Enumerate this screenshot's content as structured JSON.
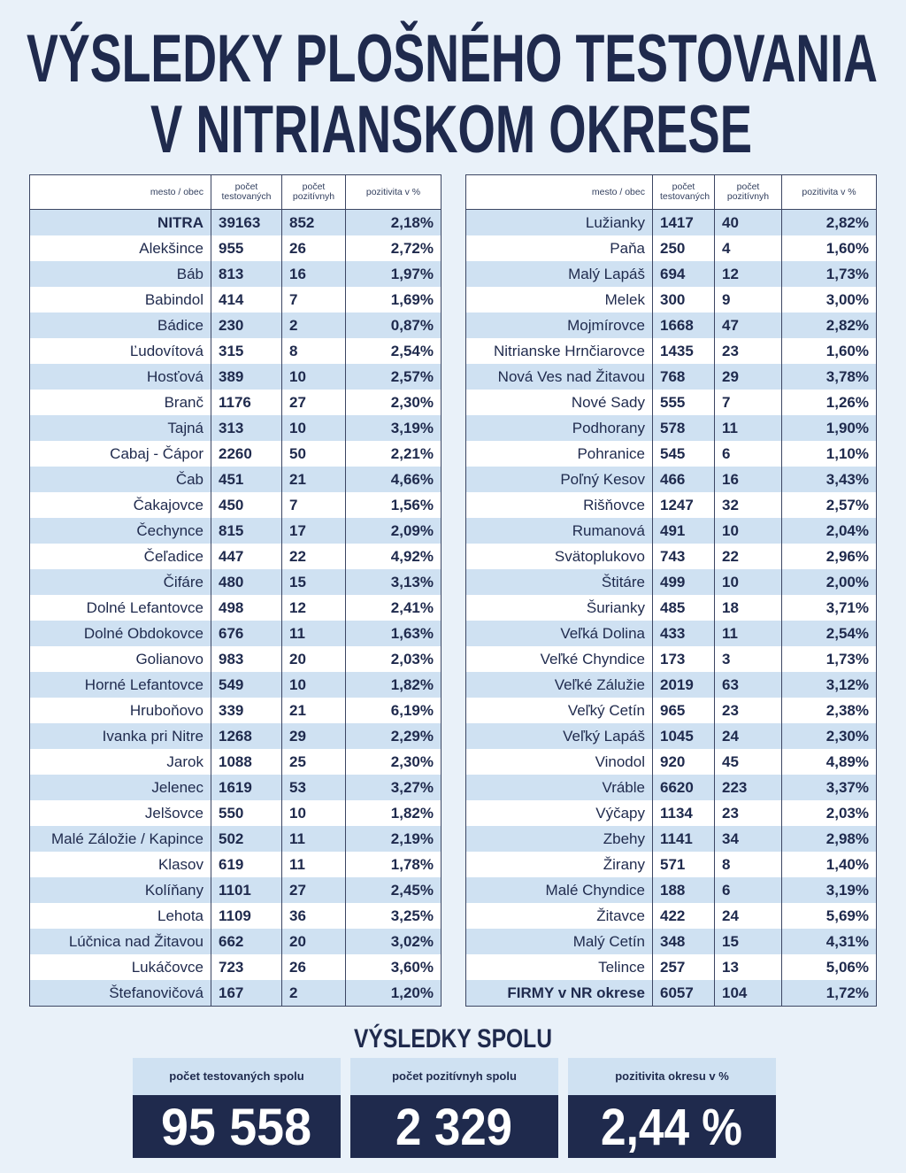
{
  "title": {
    "line1": "VÝSLEDKY PLOŠNÉHO TESTOVANIA",
    "line2": "V NITRIANSKOM OKRESE"
  },
  "tables": [
    {
      "header": [
        "mesto / obec",
        "počet testovaných",
        "počet pozitívnyh",
        "pozitivita v %"
      ],
      "rows": [
        [
          "NITRA",
          "39163",
          "852",
          "2,18%"
        ],
        [
          "Alekšince",
          "955",
          "26",
          "2,72%"
        ],
        [
          "Báb",
          "813",
          "16",
          "1,97%"
        ],
        [
          "Babindol",
          "414",
          "7",
          "1,69%"
        ],
        [
          "Bádice",
          "230",
          "2",
          "0,87%"
        ],
        [
          "Ľudovítová",
          "315",
          "8",
          "2,54%"
        ],
        [
          "Hosťová",
          "389",
          "10",
          "2,57%"
        ],
        [
          "Branč",
          "1176",
          "27",
          "2,30%"
        ],
        [
          "Tajná",
          "313",
          "10",
          "3,19%"
        ],
        [
          "Cabaj - Čápor",
          "2260",
          "50",
          "2,21%"
        ],
        [
          "Čab",
          "451",
          "21",
          "4,66%"
        ],
        [
          "Čakajovce",
          "450",
          "7",
          "1,56%"
        ],
        [
          "Čechynce",
          "815",
          "17",
          "2,09%"
        ],
        [
          "Čeľadice",
          "447",
          "22",
          "4,92%"
        ],
        [
          "Čifáre",
          "480",
          "15",
          "3,13%"
        ],
        [
          "Dolné Lefantovce",
          "498",
          "12",
          "2,41%"
        ],
        [
          "Dolné Obdokovce",
          "676",
          "11",
          "1,63%"
        ],
        [
          "Golianovo",
          "983",
          "20",
          "2,03%"
        ],
        [
          "Horné Lefantovce",
          "549",
          "10",
          "1,82%"
        ],
        [
          "Hruboňovo",
          "339",
          "21",
          "6,19%"
        ],
        [
          "Ivanka pri Nitre",
          "1268",
          "29",
          "2,29%"
        ],
        [
          "Jarok",
          "1088",
          "25",
          "2,30%"
        ],
        [
          "Jelenec",
          "1619",
          "53",
          "3,27%"
        ],
        [
          "Jelšovce",
          "550",
          "10",
          "1,82%"
        ],
        [
          "Malé Záložie / Kapince",
          "502",
          "11",
          "2,19%"
        ],
        [
          "Klasov",
          "619",
          "11",
          "1,78%"
        ],
        [
          "Kolíňany",
          "1101",
          "27",
          "2,45%"
        ],
        [
          "Lehota",
          "1109",
          "36",
          "3,25%"
        ],
        [
          "Lúčnica nad Žitavou",
          "662",
          "20",
          "3,02%"
        ],
        [
          "Lukáčovce",
          "723",
          "26",
          "3,60%"
        ],
        [
          "Štefanovičová",
          "167",
          "2",
          "1,20%"
        ]
      ]
    },
    {
      "header": [
        "mesto / obec",
        "počet testovaných",
        "počet pozitívnyh",
        "pozitivita v %"
      ],
      "rows": [
        [
          "Lužianky",
          "1417",
          "40",
          "2,82%"
        ],
        [
          "Paňa",
          "250",
          "4",
          "1,60%"
        ],
        [
          "Malý Lapáš",
          "694",
          "12",
          "1,73%"
        ],
        [
          "Melek",
          "300",
          "9",
          "3,00%"
        ],
        [
          "Mojmírovce",
          "1668",
          "47",
          "2,82%"
        ],
        [
          "Nitrianske Hrnčiarovce",
          "1435",
          "23",
          "1,60%"
        ],
        [
          "Nová Ves nad Žitavou",
          "768",
          "29",
          "3,78%"
        ],
        [
          "Nové Sady",
          "555",
          "7",
          "1,26%"
        ],
        [
          "Podhorany",
          "578",
          "11",
          "1,90%"
        ],
        [
          "Pohranice",
          "545",
          "6",
          "1,10%"
        ],
        [
          "Poľný Kesov",
          "466",
          "16",
          "3,43%"
        ],
        [
          "Rišňovce",
          "1247",
          "32",
          "2,57%"
        ],
        [
          "Rumanová",
          "491",
          "10",
          "2,04%"
        ],
        [
          "Svätoplukovo",
          "743",
          "22",
          "2,96%"
        ],
        [
          "Štitáre",
          "499",
          "10",
          "2,00%"
        ],
        [
          "Šurianky",
          "485",
          "18",
          "3,71%"
        ],
        [
          "Veľká Dolina",
          "433",
          "11",
          "2,54%"
        ],
        [
          "Veľké Chyndice",
          "173",
          "3",
          "1,73%"
        ],
        [
          "Veľké Zálužie",
          "2019",
          "63",
          "3,12%"
        ],
        [
          "Veľký Cetín",
          "965",
          "23",
          "2,38%"
        ],
        [
          "Veľký Lapáš",
          "1045",
          "24",
          "2,30%"
        ],
        [
          "Vinodol",
          "920",
          "45",
          "4,89%"
        ],
        [
          "Vráble",
          "6620",
          "223",
          "3,37%"
        ],
        [
          "Výčapy",
          "1134",
          "23",
          "2,03%"
        ],
        [
          "Zbehy",
          "1141",
          "34",
          "2,98%"
        ],
        [
          "Žirany",
          "571",
          "8",
          "1,40%"
        ],
        [
          "Malé Chyndice",
          "188",
          "6",
          "3,19%"
        ],
        [
          "Žitavce",
          "422",
          "24",
          "5,69%"
        ],
        [
          "Malý Cetín",
          "348",
          "15",
          "4,31%"
        ],
        [
          "Telince",
          "257",
          "13",
          "5,06%"
        ],
        [
          "FIRMY v NR okrese",
          "6057",
          "104",
          "1,72%"
        ]
      ]
    }
  ],
  "summary": {
    "title": "VÝSLEDKY SPOLU",
    "boxes": [
      {
        "label": "počet testovaných spolu",
        "value": "95 558"
      },
      {
        "label": "počet pozitívnyh spolu",
        "value": "2 329"
      },
      {
        "label": "pozitivita okresu v %",
        "value": "2,44 %"
      }
    ]
  }
}
